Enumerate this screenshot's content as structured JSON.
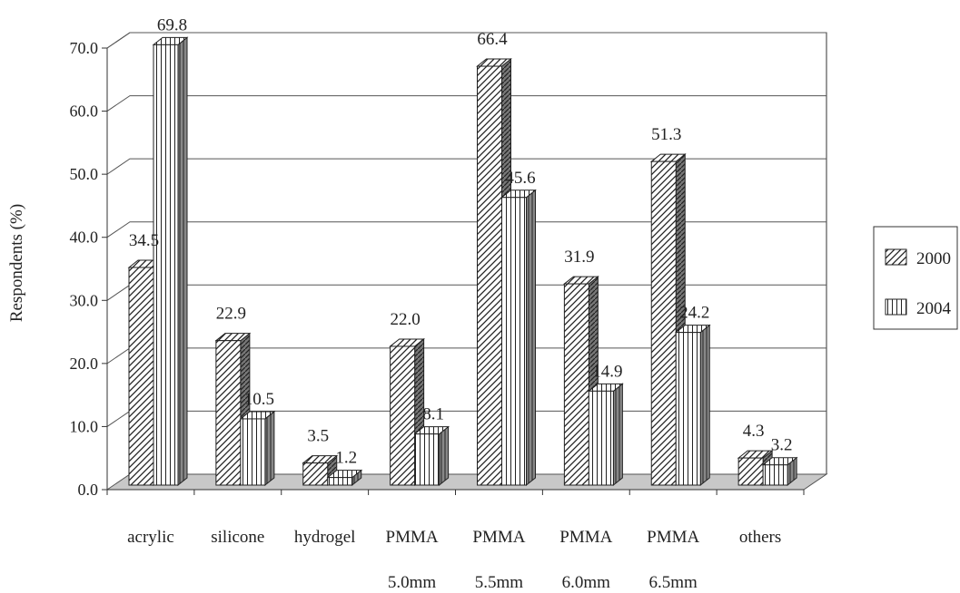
{
  "chart_data": {
    "type": "bar",
    "ylabel": "Respondents (%)",
    "ylim": [
      0,
      70
    ],
    "yticks": [
      "0.0",
      "10.0",
      "20.0",
      "30.0",
      "40.0",
      "50.0",
      "60.0",
      "70.0"
    ],
    "categories": [
      {
        "line1": "acrylic",
        "line2": ""
      },
      {
        "line1": "silicone",
        "line2": ""
      },
      {
        "line1": "hydrogel",
        "line2": ""
      },
      {
        "line1": "PMMA",
        "line2": "5.0mm"
      },
      {
        "line1": "PMMA",
        "line2": "5.5mm"
      },
      {
        "line1": "PMMA",
        "line2": "6.0mm"
      },
      {
        "line1": "PMMA",
        "line2": "6.5mm"
      },
      {
        "line1": "others",
        "line2": ""
      }
    ],
    "series": [
      {
        "name": "2000",
        "pattern": "diagonal",
        "values": [
          34.5,
          22.9,
          3.5,
          22.0,
          66.4,
          31.9,
          51.3,
          4.3
        ],
        "labels": [
          "34.5",
          "22.9",
          "3.5",
          "22.0",
          "66.4",
          "31.9",
          "51.3",
          "4.3"
        ]
      },
      {
        "name": "2004",
        "pattern": "vertical",
        "values": [
          69.8,
          10.5,
          1.2,
          8.1,
          45.6,
          14.9,
          24.2,
          3.2
        ],
        "labels": [
          "69.8",
          "10.5",
          "1.2",
          "8.1",
          "45.6",
          "14.9",
          "24.2",
          "3.2"
        ]
      }
    ],
    "grid": true,
    "legend_position": "right",
    "colors": {
      "floor": "#c8c8c8",
      "line": "#333333",
      "grid": "#555555"
    }
  }
}
